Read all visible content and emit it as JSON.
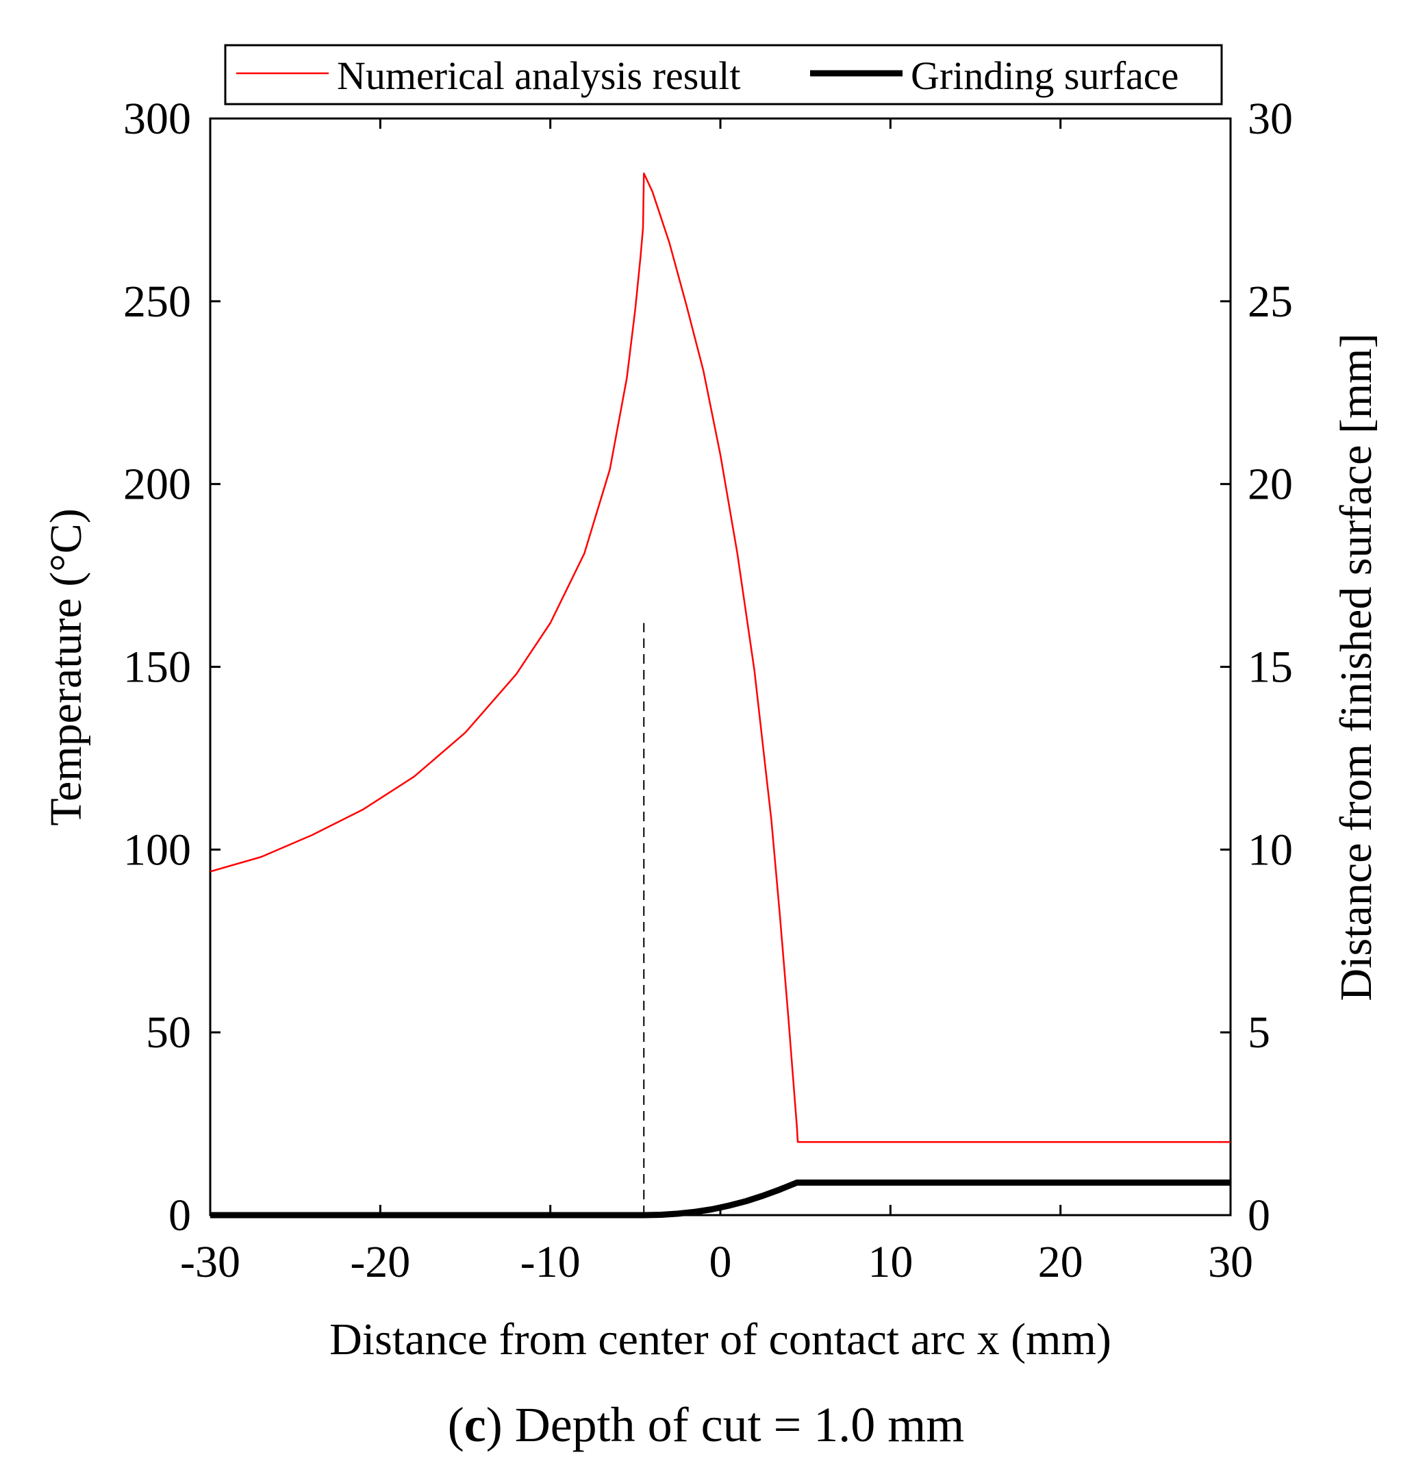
{
  "chart_data": {
    "type": "line",
    "caption": {
      "letter": "c",
      "open_paren": "(",
      "close_paren": ")",
      "text": " Depth of cut = 1.0 mm"
    },
    "xlabel": "Distance from center of contact arc x (mm)",
    "ylabel_left": "Temperature (°C)",
    "ylabel_right": "Distance from finished surface [mm]",
    "xlim": [
      -30,
      30
    ],
    "ylim_left": [
      0,
      300
    ],
    "ylim_right": [
      0,
      30
    ],
    "x_ticks": [
      -30,
      -20,
      -10,
      0,
      10,
      20,
      30
    ],
    "y_left_ticks": [
      0,
      50,
      100,
      150,
      200,
      250,
      300
    ],
    "y_right_ticks": [
      0,
      5,
      10,
      15,
      20,
      25,
      30
    ],
    "grid": false,
    "legend": {
      "placement": "top",
      "entries": [
        {
          "label": "Numerical analysis result",
          "color": "#ff0000"
        },
        {
          "label": "Grinding surface",
          "color": "#000000"
        }
      ]
    },
    "series": [
      {
        "name": "Numerical analysis result",
        "axis": "left",
        "color": "#ff0000",
        "x": [
          -30,
          -27,
          -24,
          -21,
          -18,
          -15,
          -12,
          -10,
          -8,
          -6.5,
          -5.5,
          -5,
          -4.7,
          -4.55,
          -4.5,
          -4,
          -3,
          -2,
          -1,
          0,
          1,
          2,
          3,
          3.5,
          4,
          4.3,
          4.5,
          4.55,
          4.6,
          4.7,
          5,
          10,
          20,
          30
        ],
        "values": [
          94,
          98,
          104,
          111,
          120,
          132,
          148,
          162,
          181,
          204,
          229,
          248,
          262,
          270,
          285,
          280,
          266,
          249,
          231,
          208,
          181,
          149,
          108,
          82,
          54,
          36,
          24,
          20,
          20,
          20,
          20,
          20,
          20,
          20
        ]
      },
      {
        "name": "Grinding surface",
        "axis": "right",
        "color": "#000000",
        "x": [
          -30,
          -10,
          -4.5,
          -3.5,
          -2.5,
          -1.5,
          -0.5,
          0.5,
          1.5,
          2.5,
          3.5,
          4.5,
          10,
          20,
          30
        ],
        "values": [
          0,
          0,
          0,
          0.01,
          0.04,
          0.09,
          0.16,
          0.26,
          0.38,
          0.53,
          0.7,
          0.89,
          0.89,
          0.89,
          0.89
        ]
      }
    ],
    "annotations": [
      {
        "type": "vertical-dashed-line",
        "x": -4.5,
        "y_from": 0,
        "y_to": 162,
        "axis": "left",
        "color": "#000000"
      }
    ]
  }
}
